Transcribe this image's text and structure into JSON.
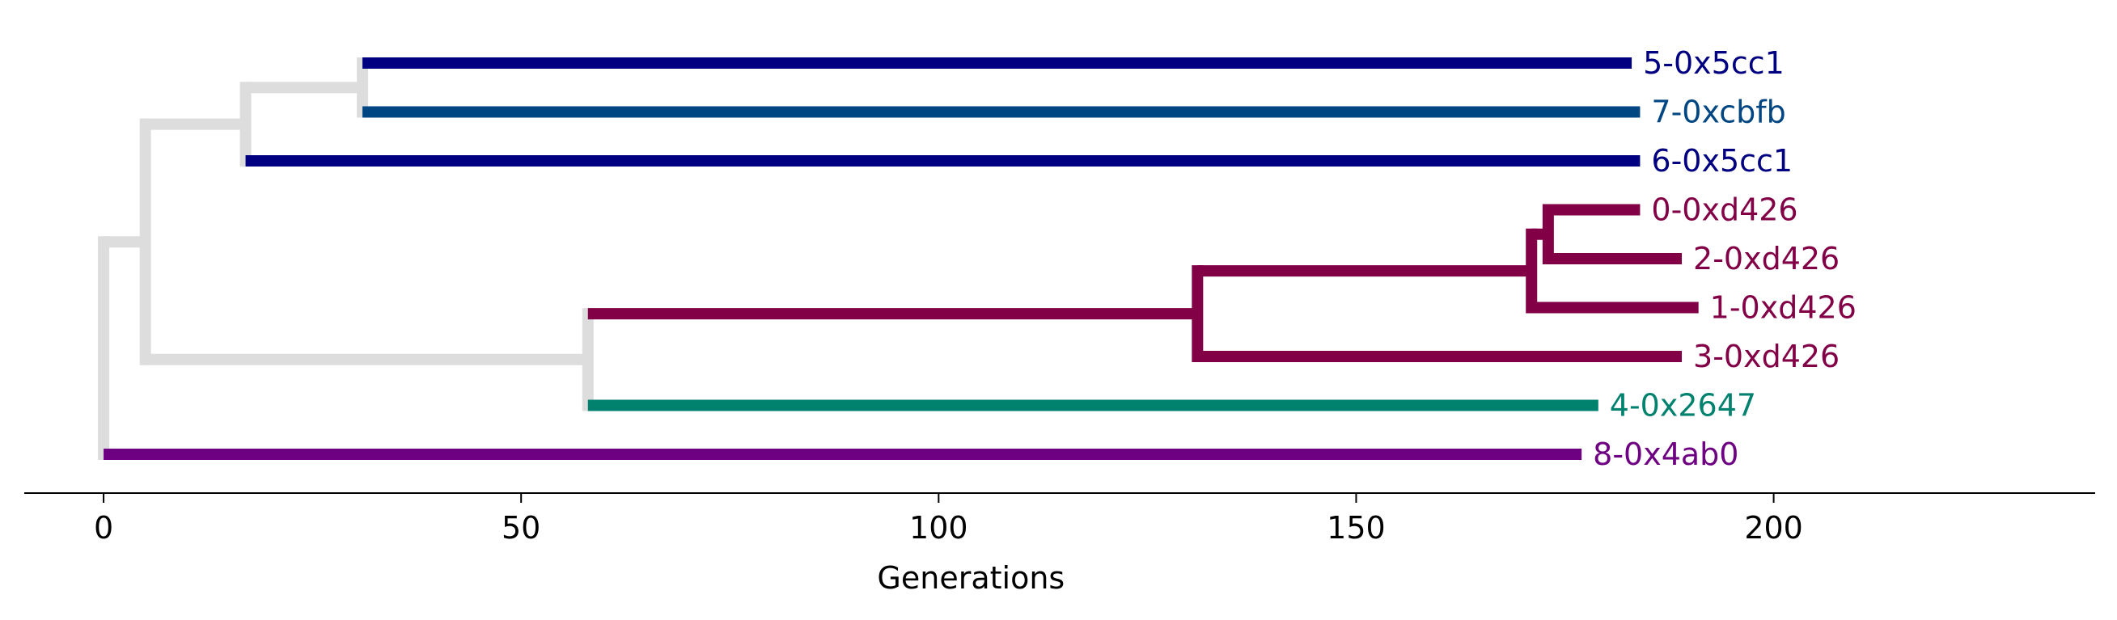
{
  "chart_data": {
    "type": "dendrogram",
    "title": "",
    "xlabel": "Generations",
    "ylabel": "",
    "xlim": [
      -9.5,
      238.5
    ],
    "xticks": [
      0,
      50,
      100,
      150,
      200
    ],
    "xtick_labels": [
      "0",
      "50",
      "100",
      "150",
      "200"
    ],
    "grid": false,
    "legend": "none",
    "colors": {
      "internal": "#dddddd",
      "navy": "#000080",
      "steel_blue": "#004682",
      "crimson": "#820046",
      "teal": "#00826e",
      "purple": "#6e0082",
      "axis": "#000000"
    },
    "leaves": [
      {
        "id": "5",
        "label": "5-0x5cc1",
        "x": 183,
        "color": "#000080"
      },
      {
        "id": "7",
        "label": "7-0xcbfb",
        "x": 184,
        "color": "#004682"
      },
      {
        "id": "6",
        "label": "6-0x5cc1",
        "x": 184,
        "color": "#000080"
      },
      {
        "id": "0",
        "label": "0-0xd426",
        "x": 184,
        "color": "#820046"
      },
      {
        "id": "2",
        "label": "2-0xd426",
        "x": 189,
        "color": "#820046"
      },
      {
        "id": "1",
        "label": "1-0xd426",
        "x": 191,
        "color": "#820046"
      },
      {
        "id": "3",
        "label": "3-0xd426",
        "x": 189,
        "color": "#820046"
      },
      {
        "id": "4",
        "label": "4-0x2647",
        "x": 179,
        "color": "#00826e"
      },
      {
        "id": "8",
        "label": "8-0x4ab0",
        "x": 177,
        "color": "#6e0082"
      }
    ],
    "internal_nodes": [
      {
        "id": "n57",
        "x": 31,
        "children": [
          "5",
          "7"
        ],
        "color": "#dddddd"
      },
      {
        "id": "n576",
        "x": 17,
        "children": [
          "n57",
          "6"
        ],
        "color": "#dddddd"
      },
      {
        "id": "n02",
        "x": 173,
        "children": [
          "0",
          "2"
        ],
        "color": "#820046"
      },
      {
        "id": "n021",
        "x": 171,
        "children": [
          "n02",
          "1"
        ],
        "color": "#820046"
      },
      {
        "id": "n0213",
        "x": 131,
        "children": [
          "n021",
          "3"
        ],
        "color": "#820046"
      },
      {
        "id": "n02134",
        "x": 58,
        "children": [
          "n0213",
          "4"
        ],
        "color": "#dddddd"
      },
      {
        "id": "nA",
        "x": 5,
        "children": [
          "n576",
          "n02134"
        ],
        "color": "#dddddd"
      },
      {
        "id": "root",
        "x": 0,
        "children": [
          "nA",
          "8"
        ],
        "color": "#dddddd"
      }
    ]
  }
}
